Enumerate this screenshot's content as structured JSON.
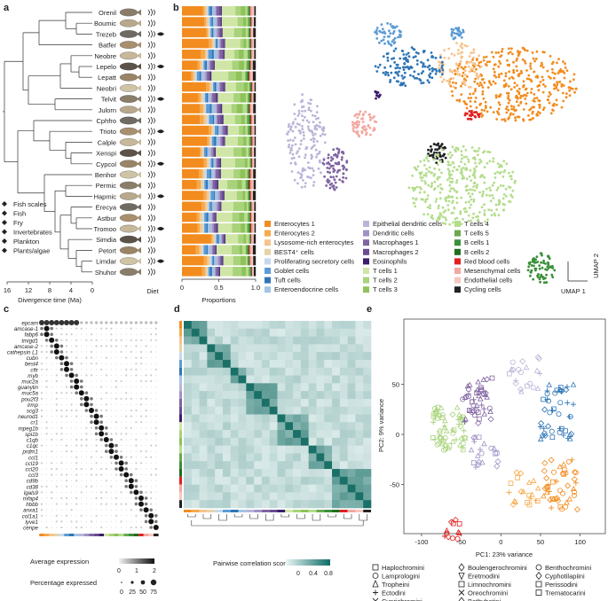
{
  "panels": {
    "a": "a",
    "b": "b",
    "c": "c",
    "d": "d",
    "e": "e"
  },
  "panel_a": {
    "species": [
      "Orenil",
      "Boumic",
      "Trezeb",
      "Batfer",
      "Neobre",
      "Lepelo",
      "Lepatt",
      "Neobri",
      "Telvit",
      "Julorn",
      "Cphfro",
      "Trioto",
      "Calple",
      "Xenspi",
      "Cypcol",
      "Benhor",
      "Permic",
      "Hapmic",
      "Erecya",
      "Astbur",
      "Tromoo",
      "Simdia",
      "Petort",
      "Limdar",
      "Shuhor"
    ],
    "axis_ticks": [
      "16",
      "12",
      "8",
      "4",
      "0"
    ],
    "axis_label": "Divergence time (Ma)",
    "diet_label": "Diet",
    "legend": [
      "Fish scales",
      "Fish",
      "Fry",
      "Invertebrates",
      "Plankton",
      "Plants/algae"
    ]
  },
  "panel_b": {
    "xlabel": "Proportions",
    "xticks": [
      "0",
      "0.5",
      "1.0"
    ],
    "legend_col1": [
      "Enterocytes 1",
      "Enterocytes 2",
      "Lysosome-rich enterocytes",
      "BEST4⁺ cells",
      "Proliferating secretory cells",
      "Goblet cells",
      "Tuft cells",
      "Enteroendocrine cells"
    ],
    "legend_col2": [
      "Epithelial dendritic cells",
      "Dendritic cells",
      "Macrophages 1",
      "Macrophages 2",
      "Eosinophils",
      "T cells 1",
      "T cells 2",
      "T cells 3"
    ],
    "legend_col3": [
      "T cells 4",
      "T cells 5",
      "B cells 1",
      "B cells 2",
      "Red blood cells",
      "Mesenchymal cells",
      "Endothelial cells",
      "Cycling cells"
    ],
    "colors_col1": [
      "#f28c1f",
      "#f7a94a",
      "#f6c48d",
      "#e7d3a8",
      "#c6d9ec",
      "#5b9bd5",
      "#2e75b6",
      "#a3c4e4"
    ],
    "colors_col2": [
      "#b9b5d8",
      "#9e92c6",
      "#8064a2",
      "#6a4c93",
      "#3c1e6e",
      "#cfe6a6",
      "#a8d37a",
      "#8fc25a"
    ],
    "colors_col3": [
      "#b4dd8c",
      "#6aa84f",
      "#3a8f3a",
      "#1f6d1f",
      "#e02020",
      "#f4a7a0",
      "#f7c6c0",
      "#222222"
    ],
    "umap_x": "UMAP 1",
    "umap_y": "UMAP 2"
  },
  "panel_c": {
    "genes": [
      "epcam",
      "amcase-1",
      "fabp6",
      "tmigd1",
      "amcase-2",
      "cathepsin L1",
      "cubn",
      "best4",
      "cftr",
      "myb",
      "muc2a",
      "guanylin",
      "muc5a",
      "pou2f3",
      "lrmp",
      "scg3",
      "neurod1",
      "cr1",
      "mpeg1b",
      "spi1b",
      "c1qb",
      "c1qc",
      "prdm1",
      "ccl1",
      "ccl19",
      "ccl20",
      "ccl3",
      "cd9b",
      "cd38",
      "lgals9",
      "mfap4",
      "hbbb",
      "anxa1",
      "col1a1",
      "lyve1",
      "cenpe"
    ],
    "legend_avg": "Average expression",
    "avg_ticks": [
      "0",
      "1",
      "2"
    ],
    "legend_pct": "Percentage expressed",
    "pct_ticks": [
      "0",
      "25",
      "50",
      "75"
    ]
  },
  "panel_d": {
    "scale_label": "Pairwise correlation score",
    "scale_ticks": [
      "0",
      "0.4",
      "0.8"
    ]
  },
  "panel_e": {
    "xlabel": "PC1: 23% variance",
    "ylabel": "PC2: 9% variance",
    "xticks": [
      "-100",
      "-50",
      "0",
      "50",
      "100"
    ],
    "yticks": [
      "50",
      "0",
      "-50"
    ],
    "legend": [
      "Haplochromini",
      "Lamprologini",
      "Tropheini",
      "Ectodini",
      "Cyprichromini",
      "Boulengerochromini",
      "Eretmodini",
      "Limnochromini",
      "Oreochromini",
      "Bathybatini",
      "Benthochromini",
      "Cyphotilapiini",
      "Perissodini",
      "Trematocarini"
    ]
  }
}
